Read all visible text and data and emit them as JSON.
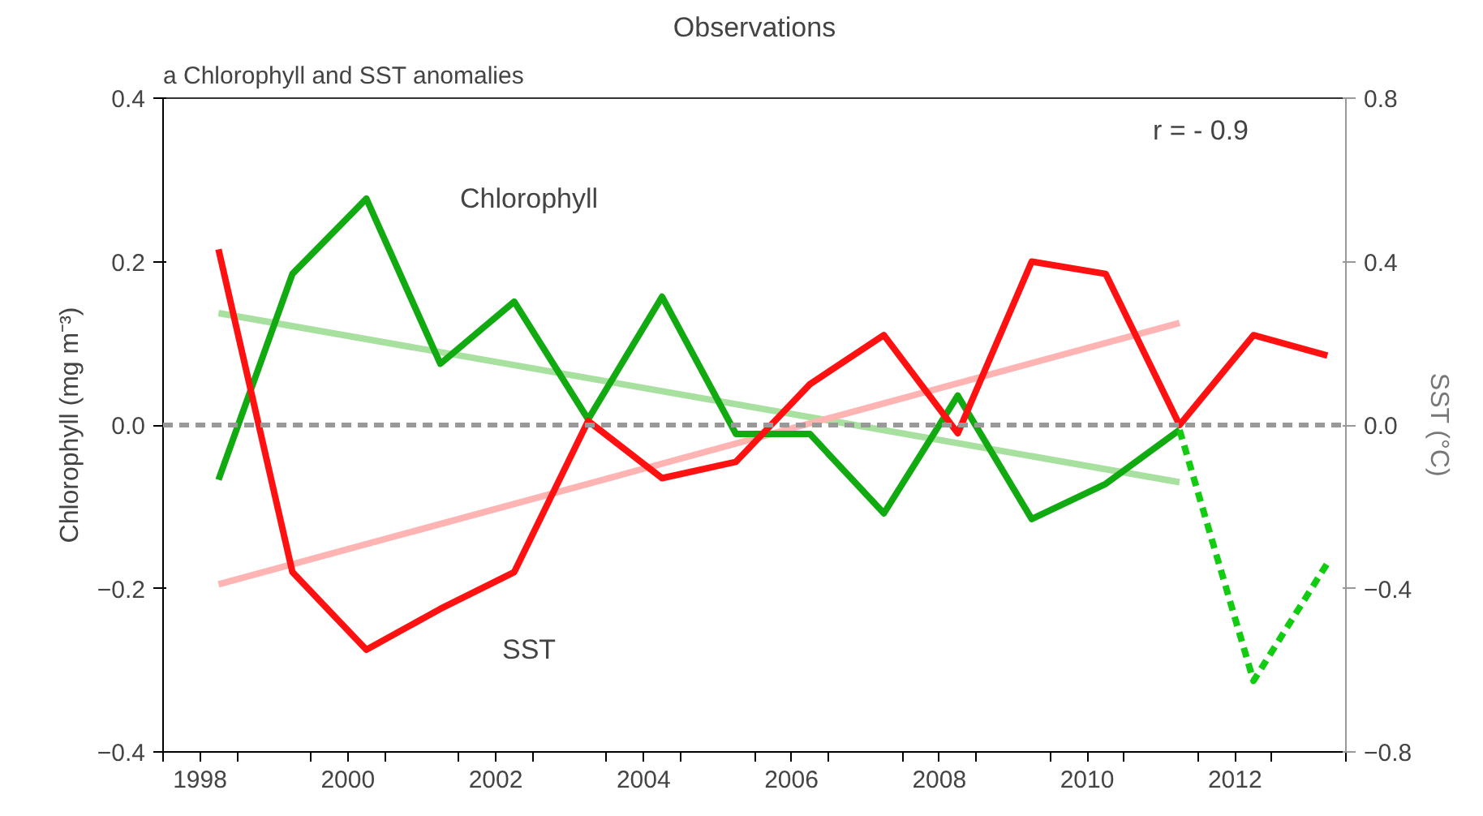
{
  "chart_data": {
    "type": "line",
    "title": "Observations",
    "subtitle": "a Chlorophyll and SST anomalies",
    "ylabel": "Chlorophyll (mg m⁻³)",
    "y2label": "SST (°C)",
    "xlim": [
      1997.5,
      2013.5
    ],
    "xticks": [
      {
        "value": 1997.5,
        "label": null
      },
      {
        "value": 1998.5,
        "label": null
      },
      {
        "value": 1999.5,
        "label": null
      },
      {
        "value": 2000.5,
        "label": null
      },
      {
        "value": 2001.5,
        "label": null
      },
      {
        "value": 2002.5,
        "label": null
      },
      {
        "value": 2003.5,
        "label": null
      },
      {
        "value": 2004.5,
        "label": null
      },
      {
        "value": 2005.5,
        "label": null
      },
      {
        "value": 2006.5,
        "label": null
      },
      {
        "value": 2007.5,
        "label": null
      },
      {
        "value": 2008.5,
        "label": null
      },
      {
        "value": 2009.5,
        "label": null
      },
      {
        "value": 2010.5,
        "label": null
      },
      {
        "value": 2011.5,
        "label": null
      },
      {
        "value": 2012.5,
        "label": null
      },
      {
        "value": 2013.5,
        "label": null
      },
      1998,
      2000,
      2002,
      2004,
      2006,
      2008,
      2010,
      2012
    ],
    "ylim": [
      -0.4,
      0.4
    ],
    "yticks": [
      -0.4,
      -0.2,
      {
        "value": 0,
        "label": "0.0"
      },
      0.2,
      0.4
    ],
    "y2lim": [
      -0.8,
      0.8
    ],
    "y2ticks": [
      -0.8,
      -0.4,
      {
        "value": 0,
        "label": "0.0"
      },
      0.4,
      0.8
    ],
    "grid": false,
    "marker": "none",
    "ref_lines": [
      {
        "axis": "y",
        "value": 0,
        "label": null,
        "color": "#999999",
        "line_style": "dashed"
      }
    ],
    "annotations": [
      "r = - 0.9"
    ],
    "series": [
      {
        "name": null,
        "color": "#a8e0a0",
        "x": [
          1998.25,
          2011.25
        ],
        "values": [
          0.137,
          -0.07
        ]
      },
      {
        "name": null,
        "color": "#ffb4b4",
        "axis": "y2",
        "x": [
          1998.25,
          2011.25
        ],
        "values": [
          -0.39,
          0.25
        ]
      },
      {
        "name": "Chlorophyll",
        "color": "#11aa11",
        "x": [
          1998.25,
          1999.25,
          2000.25,
          2001.25,
          2002.25,
          2003.25,
          2004.25,
          2005.25,
          2006.25,
          2007.25,
          2008.25,
          2009.25,
          2010.25,
          2011.25
        ],
        "values": [
          -0.067,
          0.185,
          0.277,
          0.075,
          0.151,
          0.007,
          0.157,
          -0.011,
          -0.011,
          -0.108,
          0.036,
          -0.115,
          -0.072,
          -0.006
        ]
      },
      {
        "name": null,
        "color": "#11cc11",
        "line_style": "dashed",
        "x": [
          2011.25,
          2012.25,
          2013.25
        ],
        "values": [
          -0.006,
          -0.313,
          -0.169
        ]
      },
      {
        "name": "SST",
        "color": "#ff1111",
        "axis": "y2",
        "x": [
          1998.25,
          1999.25,
          2000.25,
          2001.25,
          2002.25,
          2003.25,
          2004.25,
          2005.25,
          2006.25,
          2007.25,
          2008.25,
          2009.25,
          2010.25,
          2011.25,
          2012.25,
          2013.25
        ],
        "values": [
          0.43,
          -0.36,
          -0.55,
          -0.45,
          -0.36,
          0.01,
          -0.13,
          -0.09,
          0.1,
          0.22,
          -0.02,
          0.4,
          0.37,
          0.0,
          0.22,
          0.17
        ]
      }
    ]
  }
}
